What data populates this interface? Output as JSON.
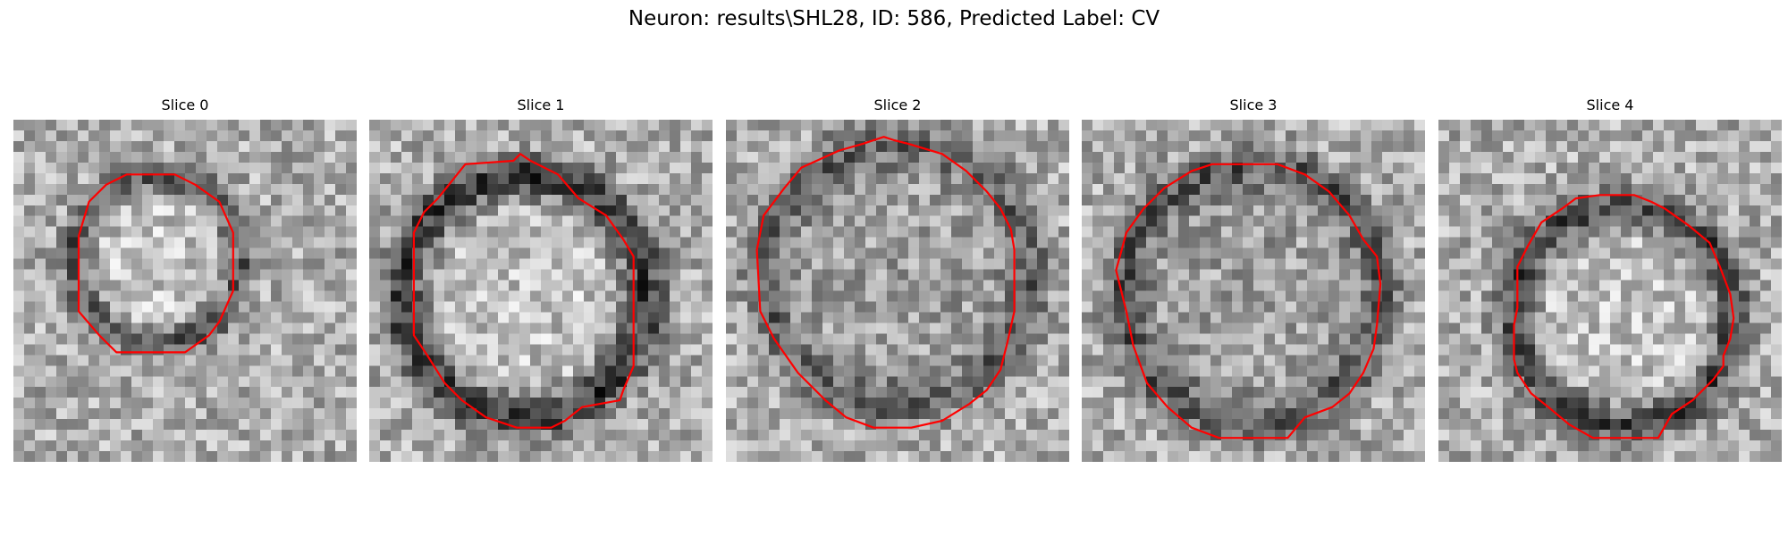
{
  "figure": {
    "title": "Neuron: results\\SHL28, ID: 586, Predicted Label: CV"
  },
  "contour_color": "#ff0000",
  "slices": [
    {
      "title": "Slice 0",
      "seed": 11,
      "inner_light": true,
      "ring_dark": 0.35,
      "contour": [
        [
          0.33,
          0.16
        ],
        [
          0.47,
          0.16
        ],
        [
          0.53,
          0.19
        ],
        [
          0.6,
          0.24
        ],
        [
          0.64,
          0.33
        ],
        [
          0.64,
          0.5
        ],
        [
          0.6,
          0.59
        ],
        [
          0.57,
          0.63
        ],
        [
          0.5,
          0.68
        ],
        [
          0.3,
          0.68
        ],
        [
          0.25,
          0.63
        ],
        [
          0.19,
          0.56
        ],
        [
          0.19,
          0.34
        ],
        [
          0.22,
          0.24
        ],
        [
          0.27,
          0.19
        ]
      ]
    },
    {
      "title": "Slice 1",
      "seed": 23,
      "inner_light": true,
      "ring_dark": 0.45,
      "contour": [
        [
          0.28,
          0.13
        ],
        [
          0.42,
          0.12
        ],
        [
          0.44,
          0.1
        ],
        [
          0.47,
          0.12
        ],
        [
          0.55,
          0.16
        ],
        [
          0.61,
          0.23
        ],
        [
          0.69,
          0.28
        ],
        [
          0.74,
          0.35
        ],
        [
          0.77,
          0.4
        ],
        [
          0.77,
          0.72
        ],
        [
          0.74,
          0.79
        ],
        [
          0.73,
          0.82
        ],
        [
          0.62,
          0.84
        ],
        [
          0.57,
          0.88
        ],
        [
          0.53,
          0.9
        ],
        [
          0.52,
          0.9
        ],
        [
          0.43,
          0.9
        ],
        [
          0.34,
          0.87
        ],
        [
          0.27,
          0.82
        ],
        [
          0.22,
          0.77
        ],
        [
          0.17,
          0.69
        ],
        [
          0.13,
          0.63
        ],
        [
          0.13,
          0.33
        ],
        [
          0.16,
          0.27
        ],
        [
          0.2,
          0.23
        ],
        [
          0.24,
          0.18
        ]
      ]
    },
    {
      "title": "Slice 2",
      "seed": 37,
      "inner_light": false,
      "ring_dark": 0.3,
      "contour": [
        [
          0.33,
          0.09
        ],
        [
          0.4,
          0.07
        ],
        [
          0.46,
          0.05
        ],
        [
          0.49,
          0.06
        ],
        [
          0.53,
          0.07
        ],
        [
          0.63,
          0.1
        ],
        [
          0.7,
          0.15
        ],
        [
          0.76,
          0.21
        ],
        [
          0.8,
          0.26
        ],
        [
          0.83,
          0.32
        ],
        [
          0.84,
          0.38
        ],
        [
          0.84,
          0.56
        ],
        [
          0.82,
          0.65
        ],
        [
          0.8,
          0.73
        ],
        [
          0.76,
          0.79
        ],
        [
          0.71,
          0.83
        ],
        [
          0.63,
          0.88
        ],
        [
          0.54,
          0.9
        ],
        [
          0.43,
          0.9
        ],
        [
          0.35,
          0.87
        ],
        [
          0.29,
          0.82
        ],
        [
          0.21,
          0.74
        ],
        [
          0.14,
          0.64
        ],
        [
          0.1,
          0.56
        ],
        [
          0.09,
          0.38
        ],
        [
          0.11,
          0.28
        ],
        [
          0.17,
          0.2
        ],
        [
          0.22,
          0.14
        ]
      ]
    },
    {
      "title": "Slice 3",
      "seed": 51,
      "inner_light": false,
      "ring_dark": 0.35,
      "contour": [
        [
          0.32,
          0.15
        ],
        [
          0.38,
          0.13
        ],
        [
          0.43,
          0.13
        ],
        [
          0.57,
          0.13
        ],
        [
          0.65,
          0.16
        ],
        [
          0.72,
          0.21
        ],
        [
          0.78,
          0.28
        ],
        [
          0.82,
          0.35
        ],
        [
          0.86,
          0.4
        ],
        [
          0.87,
          0.48
        ],
        [
          0.86,
          0.6
        ],
        [
          0.85,
          0.67
        ],
        [
          0.82,
          0.74
        ],
        [
          0.78,
          0.8
        ],
        [
          0.73,
          0.84
        ],
        [
          0.65,
          0.87
        ],
        [
          0.6,
          0.93
        ],
        [
          0.4,
          0.93
        ],
        [
          0.32,
          0.9
        ],
        [
          0.25,
          0.84
        ],
        [
          0.19,
          0.77
        ],
        [
          0.15,
          0.66
        ],
        [
          0.13,
          0.56
        ],
        [
          0.11,
          0.48
        ],
        [
          0.1,
          0.44
        ],
        [
          0.13,
          0.33
        ],
        [
          0.18,
          0.26
        ],
        [
          0.24,
          0.2
        ]
      ]
    },
    {
      "title": "Slice 4",
      "seed": 67,
      "inner_light": true,
      "ring_dark": 0.4,
      "contour": [
        [
          0.36,
          0.26
        ],
        [
          0.4,
          0.23
        ],
        [
          0.47,
          0.22
        ],
        [
          0.57,
          0.22
        ],
        [
          0.62,
          0.24
        ],
        [
          0.66,
          0.26
        ],
        [
          0.73,
          0.31
        ],
        [
          0.79,
          0.36
        ],
        [
          0.82,
          0.43
        ],
        [
          0.85,
          0.51
        ],
        [
          0.86,
          0.58
        ],
        [
          0.85,
          0.64
        ],
        [
          0.83,
          0.69
        ],
        [
          0.83,
          0.72
        ],
        [
          0.8,
          0.76
        ],
        [
          0.74,
          0.82
        ],
        [
          0.68,
          0.86
        ],
        [
          0.64,
          0.93
        ],
        [
          0.56,
          0.93
        ],
        [
          0.45,
          0.93
        ],
        [
          0.38,
          0.89
        ],
        [
          0.32,
          0.84
        ],
        [
          0.27,
          0.8
        ],
        [
          0.23,
          0.74
        ],
        [
          0.22,
          0.7
        ],
        [
          0.22,
          0.6
        ],
        [
          0.23,
          0.55
        ],
        [
          0.23,
          0.43
        ],
        [
          0.26,
          0.37
        ],
        [
          0.3,
          0.3
        ]
      ]
    }
  ]
}
